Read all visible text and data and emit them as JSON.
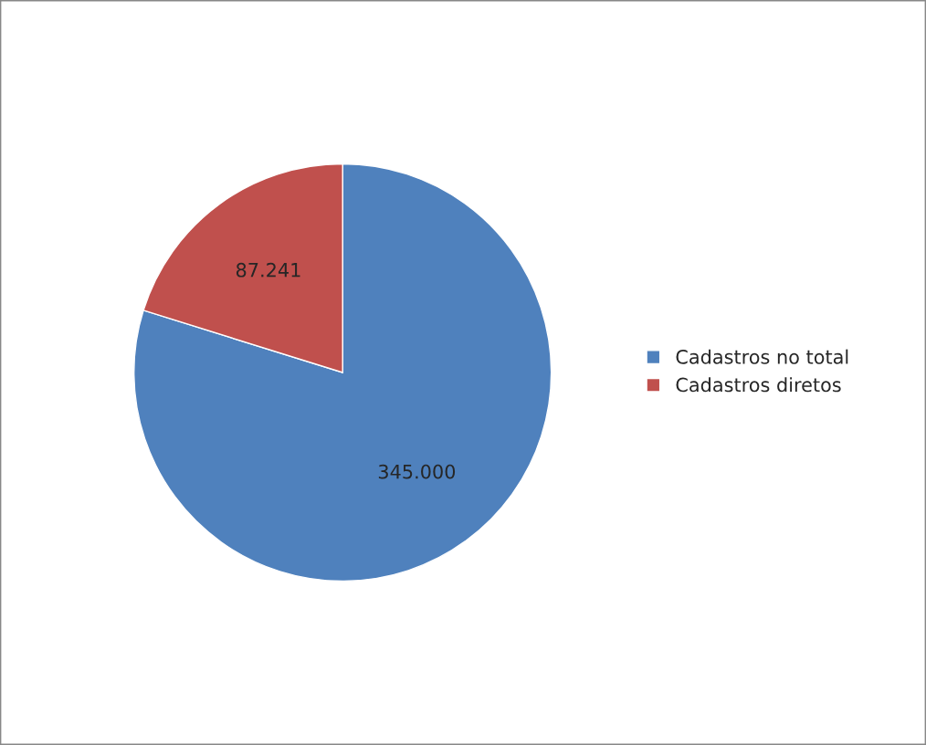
{
  "chart_data": {
    "type": "pie",
    "categories": [
      "Cadastros no total",
      "Cadastros diretos"
    ],
    "values": [
      345000,
      87241
    ],
    "value_labels": [
      "345.000",
      "87.241"
    ],
    "colors": [
      "#4f81bd",
      "#c0504d"
    ],
    "legend": "right"
  }
}
